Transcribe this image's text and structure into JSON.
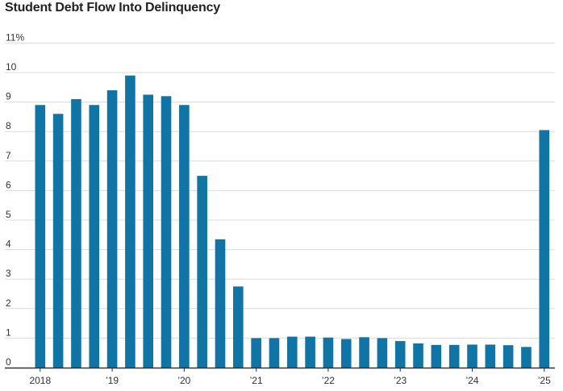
{
  "chart_data": {
    "type": "bar",
    "title": "Student Debt Flow Into Delinquency",
    "xlabel": "",
    "ylabel": "",
    "ylim": [
      0,
      11
    ],
    "y_ticks": [
      0,
      1,
      2,
      3,
      4,
      5,
      6,
      7,
      8,
      9,
      10,
      11
    ],
    "y_tick_labels": [
      "0",
      "1",
      "2",
      "3",
      "4",
      "5",
      "6",
      "7",
      "8",
      "9",
      "10",
      "11%"
    ],
    "x_tick_labels": [
      "2018",
      "’19",
      "’20",
      "’21",
      "’22",
      "’23",
      "’24",
      "’25"
    ],
    "categories": [
      "2018 Q1",
      "2018 Q2",
      "2018 Q3",
      "2018 Q4",
      "2019 Q1",
      "2019 Q2",
      "2019 Q3",
      "2019 Q4",
      "2020 Q1",
      "2020 Q2",
      "2020 Q3",
      "2020 Q4",
      "2021 Q1",
      "2021 Q2",
      "2021 Q3",
      "2021 Q4",
      "2022 Q1",
      "2022 Q2",
      "2022 Q3",
      "2022 Q4",
      "2023 Q1",
      "2023 Q2",
      "2023 Q3",
      "2023 Q4",
      "2024 Q1",
      "2024 Q2",
      "2024 Q3",
      "2024 Q4",
      "2025 Q1"
    ],
    "values": [
      8.9,
      8.6,
      9.1,
      8.9,
      9.4,
      9.9,
      9.25,
      9.2,
      8.9,
      6.5,
      4.35,
      2.75,
      1.0,
      1.0,
      1.05,
      1.05,
      1.02,
      0.97,
      1.03,
      1.0,
      0.9,
      0.82,
      0.77,
      0.77,
      0.78,
      0.78,
      0.76,
      0.7,
      8.05
    ],
    "colors": {
      "bar": "#0f75a6",
      "grid": "#dcdcdc",
      "axis": "#333333"
    }
  }
}
